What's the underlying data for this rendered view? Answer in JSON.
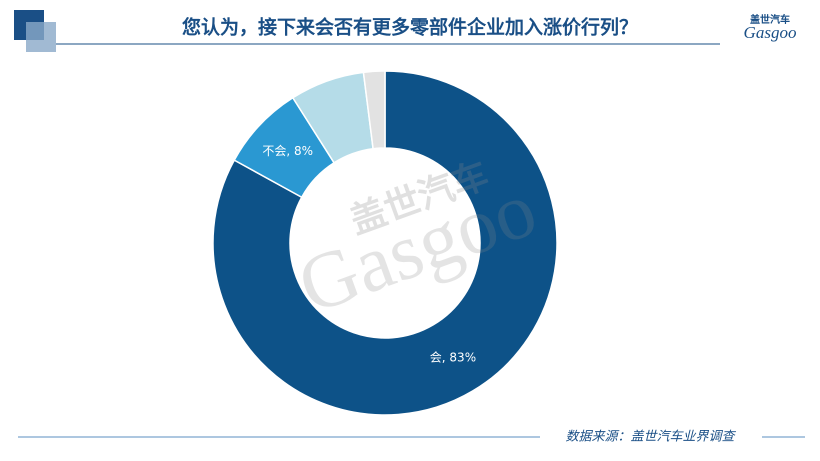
{
  "chart_data": {
    "type": "donut",
    "title": "您认为，接下来会否有更多零部件企业加入涨价行列？",
    "brand_cn": "盖世汽车",
    "brand_en": "Gasgoo",
    "source": "数据来源：盖世汽车业界调查",
    "categories": [
      "会",
      "不会",
      null,
      null
    ],
    "values": [
      83,
      8,
      7,
      2
    ],
    "value_labels": [
      "会, 83%",
      "不会, 8%",
      null,
      null
    ],
    "colors": [
      "#0d5288",
      "#2a98d2",
      "#b5dce8",
      "#e2e2e2"
    ]
  }
}
